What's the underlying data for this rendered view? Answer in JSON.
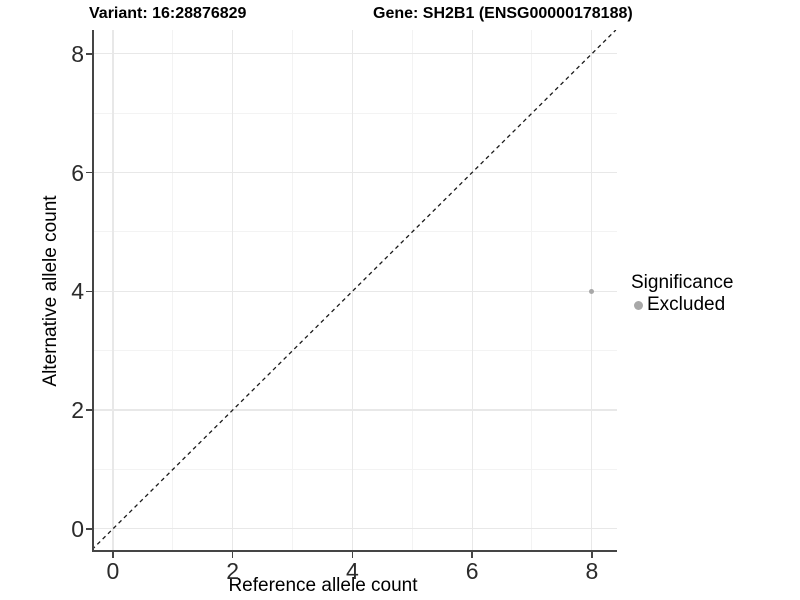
{
  "chart_data": {
    "type": "scatter",
    "title_left": "Variant: 16:28876829",
    "title_right": "Gene: SH2B1 (ENSG00000178188)",
    "xlabel": "Reference allele count",
    "ylabel": "Alternative allele count",
    "xlim": [
      -0.35,
      8.42
    ],
    "ylim": [
      -0.39,
      8.4
    ],
    "x_ticks": [
      0,
      2,
      4,
      6,
      8
    ],
    "y_ticks": [
      0,
      2,
      4,
      6,
      8
    ],
    "x_minor": [
      1,
      3,
      5,
      7
    ],
    "y_minor": [
      1,
      3,
      5,
      7
    ],
    "grid": "major+minor",
    "reference_line": {
      "slope": 1,
      "intercept": 0,
      "style": "dashed",
      "color": "#1a1a1a"
    },
    "series": [
      {
        "name": "Excluded",
        "color": "#a8a8a8",
        "point_radius": 2.5,
        "points": [
          {
            "x": 8,
            "y": 4
          }
        ]
      }
    ],
    "legend": {
      "position": "right",
      "title": "Significance",
      "items": [
        {
          "label": "Excluded",
          "color": "#a8a8a8"
        }
      ]
    },
    "style": {
      "grid_major_color": "#e8e8e8",
      "grid_minor_color": "#f3f3f3",
      "axis_line_color": "#454545",
      "tick_color": "#454545",
      "text_color": "#000000"
    }
  }
}
